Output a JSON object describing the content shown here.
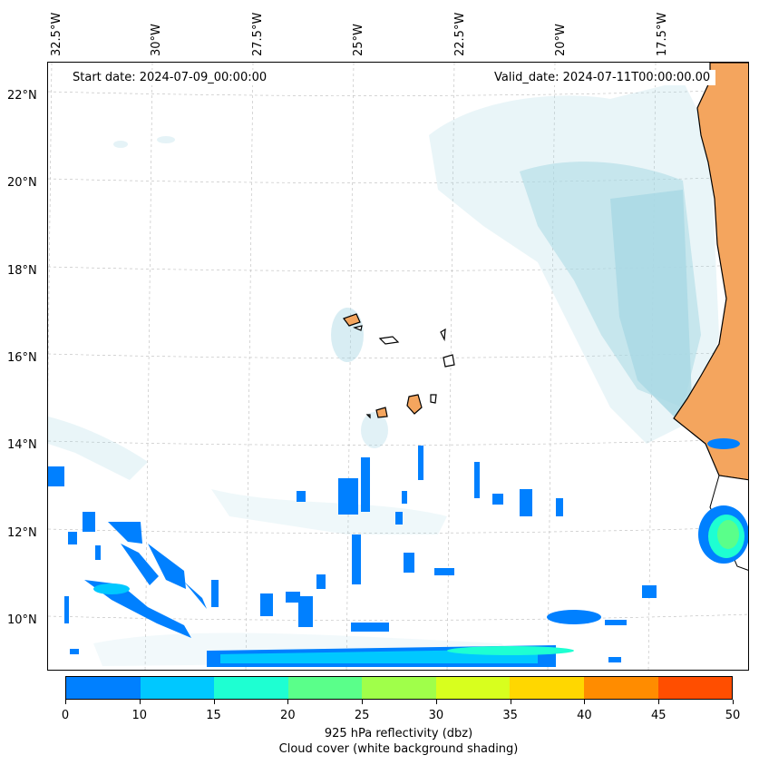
{
  "longitude_labels": [
    "32.5°W",
    "30°W",
    "27.5°W",
    "25°W",
    "22.5°W",
    "20°W",
    "17.5°W"
  ],
  "latitude_labels": [
    "22°N",
    "20°N",
    "18°N",
    "16°N",
    "14°N",
    "12°N",
    "10°N"
  ],
  "start_date": "Start date: 2024-07-09_00:00:00",
  "valid_date": "Valid_date: 2024-07-11T00:00:00.00",
  "colorbar": {
    "ticks": [
      "0",
      "10",
      "15",
      "20",
      "25",
      "30",
      "35",
      "40",
      "45",
      "50"
    ],
    "colors": [
      "#0080ff",
      "#00c8ff",
      "#1effd2",
      "#5aff8a",
      "#a0ff4a",
      "#d8ff1e",
      "#ffd700",
      "#ff8c00",
      "#ff4e00"
    ],
    "label": "925 hPa reflectivity (dbz)",
    "sublabel": "Cloud cover (white background shading)"
  },
  "colors": {
    "land": "#f4a55e",
    "cloud": "#a9d8e4",
    "coast": "#000000"
  }
}
